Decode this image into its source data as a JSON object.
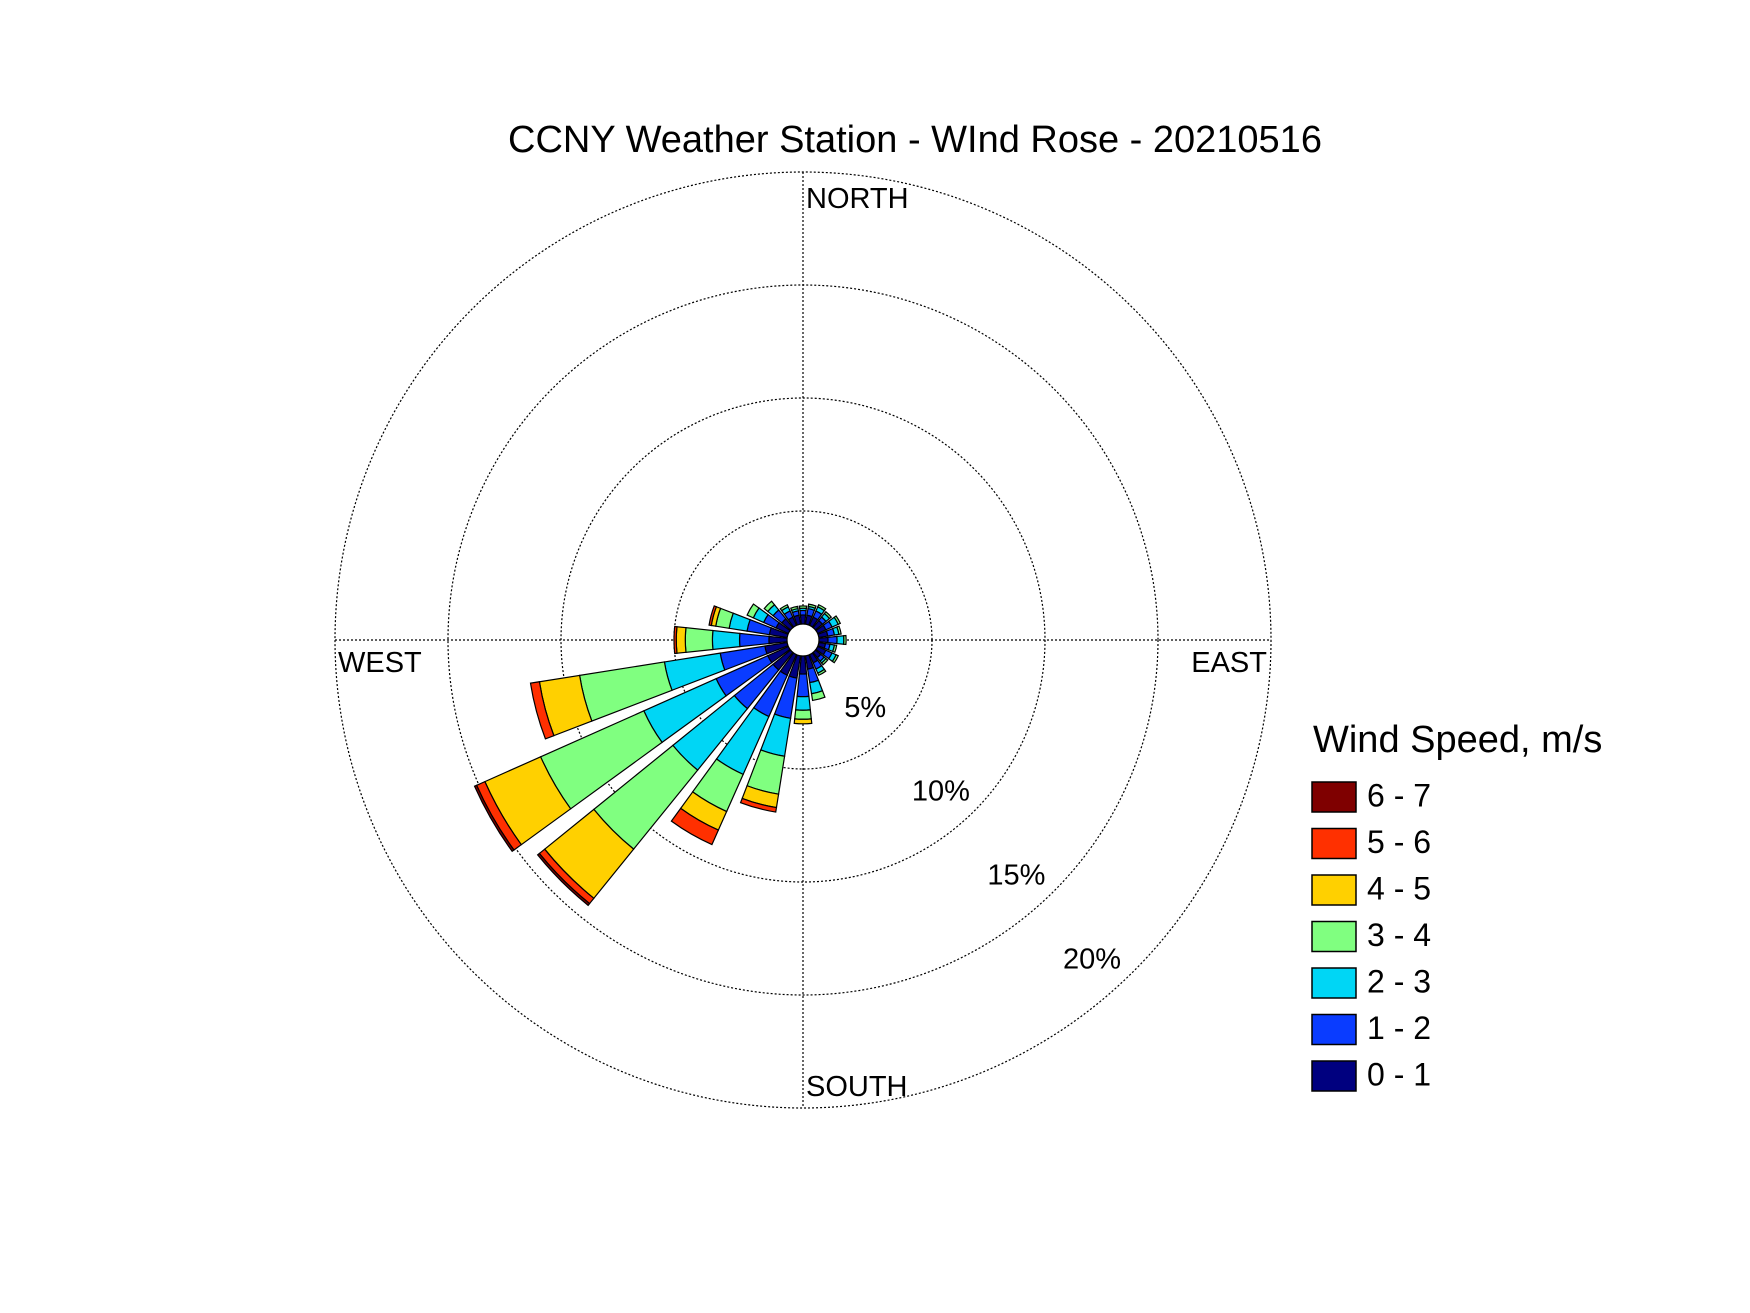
{
  "chart_data": {
    "type": "windrose",
    "title": "CCNY Weather Station - WInd Rose - 20210516",
    "direction_labels": [
      "NORTH",
      "EAST",
      "SOUTH",
      "WEST"
    ],
    "legend_title": "Wind Speed, m/s",
    "directions": [
      0,
      15,
      30,
      45,
      60,
      75,
      90,
      105,
      120,
      135,
      150,
      165,
      180,
      195,
      210,
      225,
      240,
      255,
      270,
      285,
      300,
      315,
      330,
      345
    ],
    "ylim": [
      0,
      20
    ],
    "yticks": [
      {
        "value": 5,
        "label": "5%"
      },
      {
        "value": 10,
        "label": "10%"
      },
      {
        "value": 15,
        "label": "15%"
      },
      {
        "value": 20,
        "label": "20%"
      }
    ],
    "grid": true,
    "series": [
      {
        "name": "0 - 1",
        "color": "#00007f",
        "values": [
          0.4,
          0.4,
          0.4,
          0.4,
          0.4,
          0.4,
          0.4,
          0.3,
          0.4,
          0.3,
          0.4,
          0.6,
          0.8,
          1.0,
          1.0,
          1.0,
          1.0,
          1.0,
          0.8,
          0.8,
          0.6,
          0.5,
          0.4,
          0.4
        ]
      },
      {
        "name": "1 - 2",
        "color": "#0a3cff",
        "values": [
          0.2,
          0.3,
          0.3,
          0.2,
          0.3,
          0.3,
          0.4,
          0.2,
          0.3,
          0.2,
          0.3,
          0.6,
          1.0,
          1.8,
          2.0,
          2.2,
          2.5,
          2.0,
          1.3,
          1.0,
          0.6,
          0.5,
          0.3,
          0.2
        ]
      },
      {
        "name": "2 - 3",
        "color": "#00d6f5",
        "values": [
          0.1,
          0.1,
          0.2,
          0.2,
          0.3,
          0.2,
          0.3,
          0.2,
          0.2,
          0.1,
          0.2,
          0.5,
          0.6,
          1.7,
          2.8,
          3.5,
          3.5,
          2.5,
          1.2,
          0.8,
          0.5,
          0.3,
          0.2,
          0.1
        ]
      },
      {
        "name": "3 - 4",
        "color": "#80ff80",
        "values": [
          0.1,
          0.1,
          0.1,
          0.1,
          0.1,
          0.1,
          0.1,
          0.1,
          0.1,
          0.1,
          0.1,
          0.3,
          0.4,
          1.7,
          1.8,
          4.5,
          5.0,
          3.8,
          1.2,
          0.6,
          0.3,
          0.2,
          0.1,
          0.1
        ]
      },
      {
        "name": "4 - 5",
        "color": "#ffd000",
        "values": [
          0,
          0,
          0,
          0,
          0,
          0,
          0,
          0,
          0,
          0,
          0,
          0,
          0.2,
          0.6,
          0.9,
          2.8,
          2.7,
          1.8,
          0.4,
          0.2,
          0,
          0,
          0,
          0
        ]
      },
      {
        "name": "5 - 6",
        "color": "#ff3000",
        "values": [
          0,
          0,
          0,
          0,
          0,
          0,
          0,
          0,
          0,
          0,
          0,
          0,
          0,
          0.2,
          0.7,
          0.3,
          0.4,
          0.4,
          0.1,
          0.1,
          0,
          0,
          0,
          0
        ]
      },
      {
        "name": "6 - 7",
        "color": "#7f0000",
        "values": [
          0,
          0,
          0,
          0,
          0,
          0,
          0,
          0,
          0,
          0,
          0,
          0,
          0,
          0,
          0,
          0.1,
          0.1,
          0,
          0,
          0,
          0,
          0,
          0,
          0
        ]
      }
    ]
  }
}
